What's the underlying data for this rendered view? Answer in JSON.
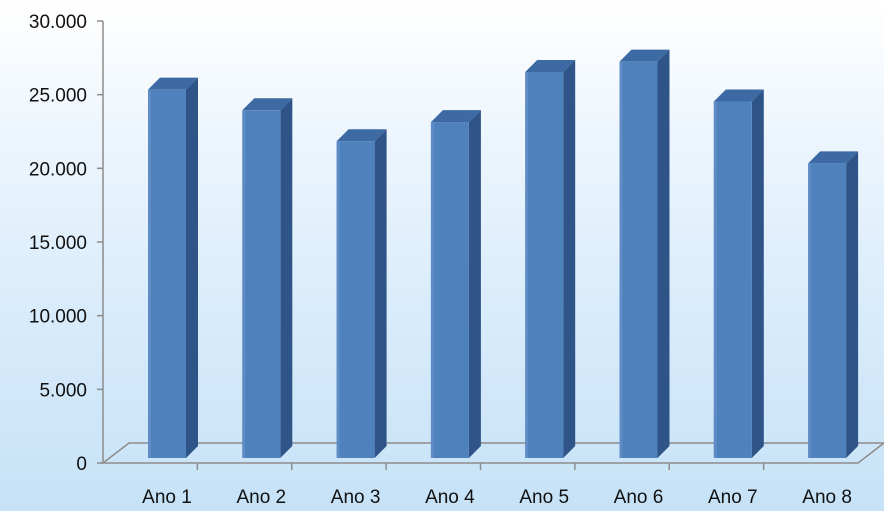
{
  "chart_data": {
    "type": "bar",
    "style": "3d-column",
    "categories": [
      "Ano 1",
      "Ano 2",
      "Ano 3",
      "Ano 4",
      "Ano 5",
      "Ano 6",
      "Ano 7",
      "Ano 8"
    ],
    "values": [
      25000,
      23600,
      21500,
      22800,
      26200,
      26900,
      24200,
      20000
    ],
    "yticks": [
      "0",
      "5.000",
      "10.000",
      "15.000",
      "20.000",
      "25.000",
      "30.000"
    ],
    "ylim": [
      0,
      30000
    ],
    "grid": false,
    "legend": "none",
    "colors": {
      "bar_front": "#4f81bd",
      "bar_side": "#2f5487",
      "bar_top": "#3d6aa3",
      "axis": "#8c8c8c"
    }
  }
}
